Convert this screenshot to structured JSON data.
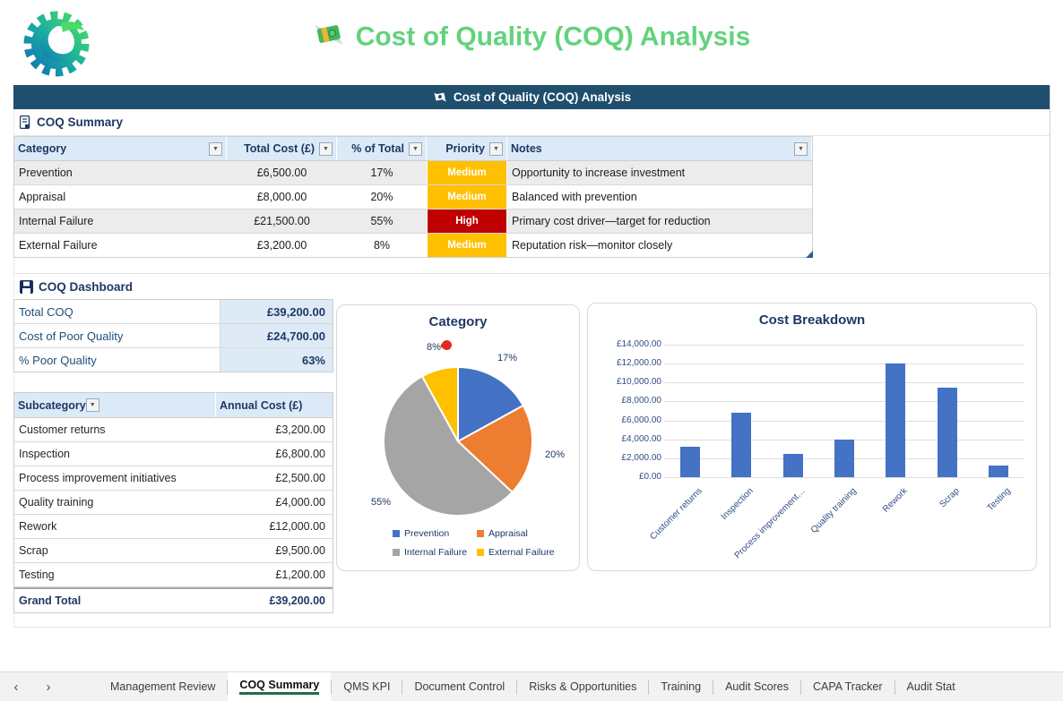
{
  "app": {
    "page_title": "Cost of Quality (COQ) Analysis",
    "banner_title": "Cost of Quality (COQ) Analysis"
  },
  "colors": {
    "title_green": "#62d37c",
    "banner_bg": "#1f4e6e",
    "navy_text": "#1f3864",
    "priority_medium": "#ffc000",
    "priority_high": "#c00000",
    "bar_color": "#4472c4",
    "active_tab_underline": "#1e7145",
    "annotation_red": "#e32b1e"
  },
  "summary": {
    "section_title": "COQ Summary",
    "columns": [
      "Category",
      "Total Cost (£)",
      "% of Total",
      "Priority",
      "Notes"
    ],
    "rows": [
      {
        "category": "Prevention",
        "total_cost": "£6,500.00",
        "pct": "17%",
        "priority": "Medium",
        "notes": "Opportunity to increase investment"
      },
      {
        "category": "Appraisal",
        "total_cost": "£8,000.00",
        "pct": "20%",
        "priority": "Medium",
        "notes": "Balanced with prevention"
      },
      {
        "category": "Internal Failure",
        "total_cost": "£21,500.00",
        "pct": "55%",
        "priority": "High",
        "notes": "Primary cost driver—target for reduction"
      },
      {
        "category": "External Failure",
        "total_cost": "£3,200.00",
        "pct": "8%",
        "priority": "Medium",
        "notes": "Reputation risk—monitor closely"
      }
    ]
  },
  "dashboard": {
    "section_title": "COQ Dashboard",
    "kpis": [
      {
        "label": "Total COQ",
        "value": "£39,200.00"
      },
      {
        "label": "Cost of Poor Quality",
        "value": "£24,700.00"
      },
      {
        "label": "% Poor Quality",
        "value": "63%"
      }
    ],
    "subcategory_table": {
      "columns": [
        "Subcategory",
        "Annual Cost (£)"
      ],
      "rows": [
        {
          "label": "Customer returns",
          "value": "£3,200.00"
        },
        {
          "label": "Inspection",
          "value": "£6,800.00"
        },
        {
          "label": "Process improvement initiatives",
          "value": "£2,500.00"
        },
        {
          "label": "Quality training",
          "value": "£4,000.00"
        },
        {
          "label": "Rework",
          "value": "£12,000.00"
        },
        {
          "label": "Scrap",
          "value": "£9,500.00"
        },
        {
          "label": "Testing",
          "value": "£1,200.00"
        }
      ],
      "grand_total": {
        "label": "Grand Total",
        "value": "£39,200.00"
      }
    }
  },
  "chart_data": [
    {
      "type": "pie",
      "title": "Category",
      "labels": [
        "Prevention",
        "Appraisal",
        "Internal Failure",
        "External Failure"
      ],
      "values": [
        17,
        20,
        55,
        8
      ],
      "slice_labels": [
        "17%",
        "20%",
        "55%",
        "8%"
      ],
      "colors": [
        "#4472C4",
        "#ED7D31",
        "#A5A5A5",
        "#FFC000"
      ],
      "legend_position": "bottom",
      "annotation": {
        "type": "red-dot",
        "near_label": "8%"
      }
    },
    {
      "type": "bar",
      "title": "Cost Breakdown",
      "categories": [
        "Customer returns",
        "Inspection",
        "Process improvement…",
        "Quality training",
        "Rework",
        "Scrap",
        "Testing"
      ],
      "values": [
        3200,
        6800,
        2500,
        4000,
        12000,
        9500,
        1200
      ],
      "ylim": [
        0,
        14000
      ],
      "ytick_labels": [
        "£0.00",
        "£2,000.00",
        "£4,000.00",
        "£6,000.00",
        "£8,000.00",
        "£10,000.00",
        "£12,000.00",
        "£14,000.00"
      ],
      "grid": true,
      "bar_color": "#4472C4"
    }
  ],
  "tabbar": {
    "nav_left": "‹",
    "nav_right": "›",
    "tabs": [
      {
        "label": "Management Review",
        "active": false
      },
      {
        "label": "COQ Summary",
        "active": true
      },
      {
        "label": "QMS KPI",
        "active": false
      },
      {
        "label": "Document Control",
        "active": false
      },
      {
        "label": "Risks & Opportunities",
        "active": false
      },
      {
        "label": "Training",
        "active": false
      },
      {
        "label": "Audit Scores",
        "active": false
      },
      {
        "label": "CAPA Tracker",
        "active": false
      },
      {
        "label": "Audit Stat",
        "active": false
      }
    ]
  }
}
